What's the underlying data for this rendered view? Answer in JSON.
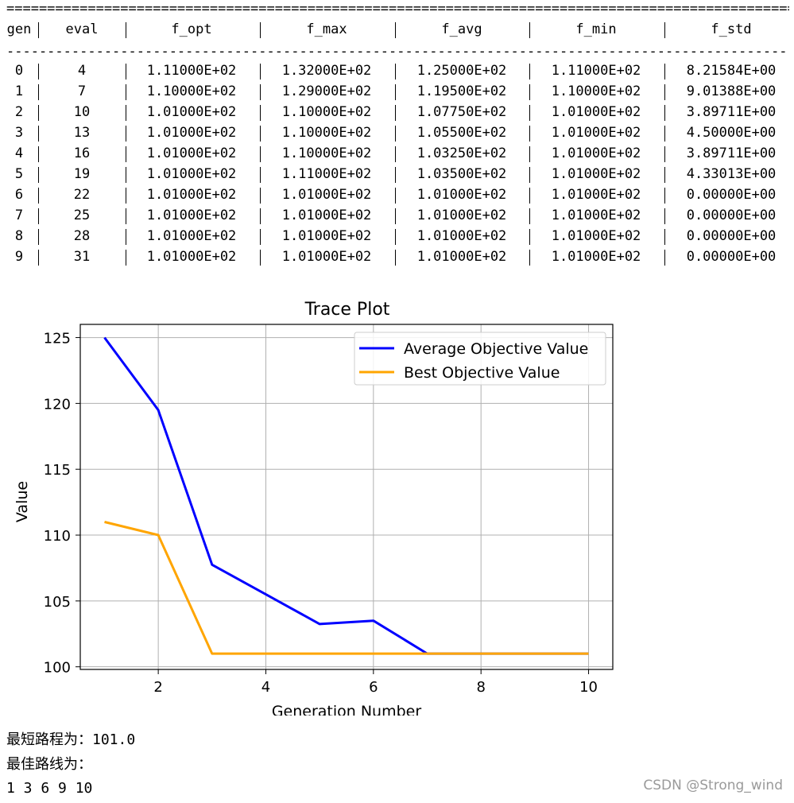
{
  "table": {
    "top_rule": "================================================================================================================",
    "sep_rule": "----------------------------------------------------------------------------------------------------------------",
    "headers": [
      "gen",
      "eval",
      "f_opt",
      "f_max",
      "f_avg",
      "f_min",
      "f_std"
    ],
    "rows": [
      [
        "0",
        "4",
        "1.11000E+02",
        "1.32000E+02",
        "1.25000E+02",
        "1.11000E+02",
        "8.21584E+00"
      ],
      [
        "1",
        "7",
        "1.10000E+02",
        "1.29000E+02",
        "1.19500E+02",
        "1.10000E+02",
        "9.01388E+00"
      ],
      [
        "2",
        "10",
        "1.01000E+02",
        "1.10000E+02",
        "1.07750E+02",
        "1.01000E+02",
        "3.89711E+00"
      ],
      [
        "3",
        "13",
        "1.01000E+02",
        "1.10000E+02",
        "1.05500E+02",
        "1.01000E+02",
        "4.50000E+00"
      ],
      [
        "4",
        "16",
        "1.01000E+02",
        "1.10000E+02",
        "1.03250E+02",
        "1.01000E+02",
        "3.89711E+00"
      ],
      [
        "5",
        "19",
        "1.01000E+02",
        "1.11000E+02",
        "1.03500E+02",
        "1.01000E+02",
        "4.33013E+00"
      ],
      [
        "6",
        "22",
        "1.01000E+02",
        "1.01000E+02",
        "1.01000E+02",
        "1.01000E+02",
        "0.00000E+00"
      ],
      [
        "7",
        "25",
        "1.01000E+02",
        "1.01000E+02",
        "1.01000E+02",
        "1.01000E+02",
        "0.00000E+00"
      ],
      [
        "8",
        "28",
        "1.01000E+02",
        "1.01000E+02",
        "1.01000E+02",
        "1.01000E+02",
        "0.00000E+00"
      ],
      [
        "9",
        "31",
        "1.01000E+02",
        "1.01000E+02",
        "1.01000E+02",
        "1.01000E+02",
        "0.00000E+00"
      ]
    ]
  },
  "chart_data": {
    "type": "line",
    "title": "Trace Plot",
    "xlabel": "Generation Number",
    "ylabel": "Value",
    "x": [
      1,
      2,
      3,
      4,
      5,
      6,
      7,
      8,
      9,
      10
    ],
    "xlim": [
      0.55,
      10.45
    ],
    "ylim": [
      99.8,
      126
    ],
    "xticks": [
      2,
      4,
      6,
      8,
      10
    ],
    "yticks": [
      100,
      105,
      110,
      115,
      120,
      125
    ],
    "grid": true,
    "legend_position": "top-right",
    "series": [
      {
        "name": "Average Objective Value",
        "color": "#0000ff",
        "values": [
          125.0,
          119.5,
          107.75,
          105.5,
          103.25,
          103.5,
          101.0,
          101.0,
          101.0,
          101.0
        ]
      },
      {
        "name": "Best Objective Value",
        "color": "#ffa500",
        "values": [
          111.0,
          110.0,
          101.0,
          101.0,
          101.0,
          101.0,
          101.0,
          101.0,
          101.0,
          101.0
        ]
      }
    ]
  },
  "output": {
    "line1": "最短路程为：101.0",
    "line2": "最佳路线为：",
    "line3": "1 3 6 9 10"
  },
  "watermark": "CSDN @Strong_wind"
}
